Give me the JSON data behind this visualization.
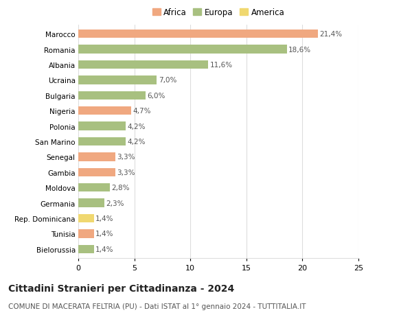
{
  "categories": [
    "Marocco",
    "Romania",
    "Albania",
    "Ucraina",
    "Bulgaria",
    "Nigeria",
    "Polonia",
    "San Marino",
    "Senegal",
    "Gambia",
    "Moldova",
    "Germania",
    "Rep. Dominicana",
    "Tunisia",
    "Bielorussia"
  ],
  "values": [
    21.4,
    18.6,
    11.6,
    7.0,
    6.0,
    4.7,
    4.2,
    4.2,
    3.3,
    3.3,
    2.8,
    2.3,
    1.4,
    1.4,
    1.4
  ],
  "labels": [
    "21,4%",
    "18,6%",
    "11,6%",
    "7,0%",
    "6,0%",
    "4,7%",
    "4,2%",
    "4,2%",
    "3,3%",
    "3,3%",
    "2,8%",
    "2,3%",
    "1,4%",
    "1,4%",
    "1,4%"
  ],
  "continents": [
    "Africa",
    "Europa",
    "Europa",
    "Europa",
    "Europa",
    "Africa",
    "Europa",
    "Europa",
    "Africa",
    "Africa",
    "Europa",
    "Europa",
    "America",
    "Africa",
    "Europa"
  ],
  "colors": {
    "Africa": "#F0A880",
    "Europa": "#A8C080",
    "America": "#F0D870"
  },
  "title1": "Cittadini Stranieri per Cittadinanza - 2024",
  "title2": "COMUNE DI MACERATA FELTRIA (PU) - Dati ISTAT al 1° gennaio 2024 - TUTTITALIA.IT",
  "xlim": [
    0,
    25
  ],
  "xticks": [
    0,
    5,
    10,
    15,
    20,
    25
  ],
  "background_color": "#ffffff",
  "grid_color": "#dddddd",
  "bar_height": 0.55,
  "label_fontsize": 7.5,
  "ytick_fontsize": 7.5,
  "xtick_fontsize": 8,
  "title1_fontsize": 10,
  "title2_fontsize": 7.5
}
